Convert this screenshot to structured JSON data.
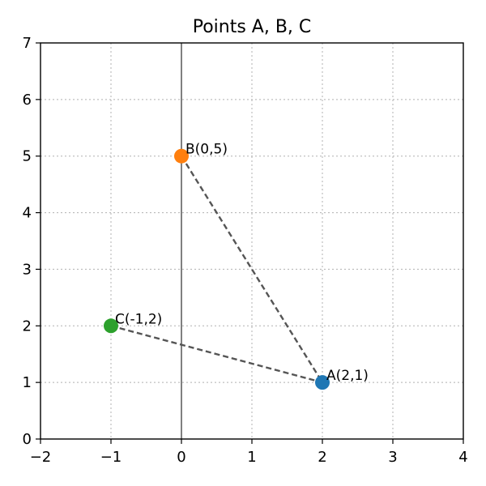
{
  "chart_data": {
    "type": "scatter",
    "title": "Points A, B, C",
    "xlabel": "",
    "ylabel": "",
    "xlim": [
      -2,
      4
    ],
    "ylim": [
      0,
      7
    ],
    "xticks": [
      -2,
      -1,
      0,
      1,
      2,
      3,
      4
    ],
    "yticks": [
      0,
      1,
      2,
      3,
      4,
      5,
      6,
      7
    ],
    "xtick_labels": [
      "−2",
      "−1",
      "0",
      "1",
      "2",
      "3",
      "4"
    ],
    "ytick_labels": [
      "0",
      "1",
      "2",
      "3",
      "4",
      "5",
      "6",
      "7"
    ],
    "grid": true,
    "zero_line_x": 0,
    "points": [
      {
        "x": 2,
        "y": 1,
        "label": "A(2,1)",
        "color": "#1f77b4"
      },
      {
        "x": 0,
        "y": 5,
        "label": "B(0,5)",
        "color": "#ff7f0e"
      },
      {
        "x": -1,
        "y": 2,
        "label": "C(-1,2)",
        "color": "#2ca02c"
      }
    ],
    "connections": [
      {
        "from": "B(0,5)",
        "to": "A(2,1)",
        "style": "dashed",
        "color": "#555555"
      },
      {
        "from": "C(-1,2)",
        "to": "A(2,1)",
        "style": "dashed",
        "color": "#555555"
      }
    ]
  }
}
